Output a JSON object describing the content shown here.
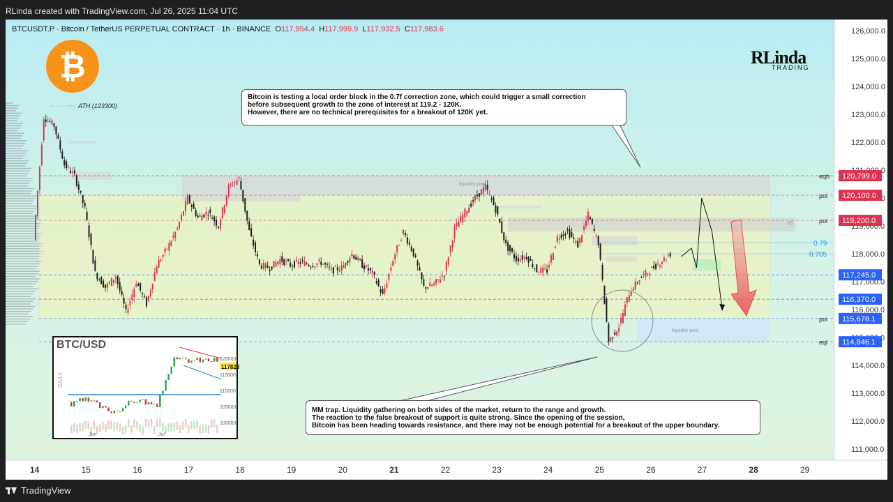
{
  "header": {
    "attribution": "RLinda created with TradingView.com, Jul 26, 2025 11:04 UTC"
  },
  "footer": {
    "brand": "TradingView"
  },
  "legend": {
    "symbol": "BTCUSDT.P · Bitcoin / TetherUS PERPETUAL CONTRACT · 1h · BINANCE",
    "o_label": "O",
    "o_value": "117,954.4",
    "h_label": "H",
    "h_value": "117,999.9",
    "l_label": "L",
    "l_value": "117,932.5",
    "c_label": "C",
    "c_value": "117,983.6"
  },
  "logos": {
    "btc": "₿",
    "brand_top": "RLinda",
    "brand_bottom": "TRADING"
  },
  "annotations": {
    "ath": "ATH (123300)",
    "liquidity_pool_top": "liquidity pool",
    "liquidity_pool_bottom": "liquidity pool",
    "ob": "oB",
    "callout_top": [
      "Bitcoin is testing a local order block in the 0.7f correction zone, which could trigger a small correction",
      "before subsequent growth to the zone of interest at 119.2 - 120K.",
      "However, there are no technical prerequisites for a breakout of 120K yet."
    ],
    "callout_bottom": [
      "MM trap. Liquidity gathering on both sides of the market, return to the range and growth.",
      "The reaction to the false breakout of support is quite strong. Since the opening of the session,",
      "Bitcoin has been heading towards resistance, and there may not be enough potential for a breakout of the upper boundary."
    ]
  },
  "levels": [
    {
      "label": "eqh",
      "price": "120,799.0",
      "color": "#e0324f"
    },
    {
      "label": "poi",
      "price": "120,100.0",
      "color": "#e0324f"
    },
    {
      "label": "poi",
      "price": "119,200.0",
      "color": "#e0324f"
    },
    {
      "label": "",
      "price": "117,245.0",
      "color": "#2962ff"
    },
    {
      "label": "",
      "price": "116,370.0",
      "color": "#2962ff"
    },
    {
      "label": "poi",
      "price": "115,678.1",
      "color": "#2962ff"
    },
    {
      "label": "eql",
      "price": "114,846.1",
      "color": "#2962ff"
    }
  ],
  "fib": [
    {
      "label": "0.79",
      "value": 118400
    },
    {
      "label": "0.705",
      "value": 118000
    }
  ],
  "inset": {
    "title": "BTC/USD",
    "side_label": "DAILY",
    "y_ticks": [
      "120000",
      "115000",
      "110000",
      "105000",
      "100000"
    ],
    "x_ticks": [
      "Jun",
      "Jul"
    ],
    "price_tag": "117828"
  },
  "chart_data": {
    "type": "candlestick",
    "title": "BTCUSDT.P · Bitcoin / TetherUS PERPETUAL CONTRACT · 1h · BINANCE",
    "y_axis": {
      "ticks": [
        "126,000.0",
        "125,000.0",
        "124,000.0",
        "123,000.0",
        "122,000.0",
        "121,000.0",
        "120,000.0",
        "119,000.0",
        "118,000.0",
        "117,000.0",
        "116,000.0",
        "115,000.0",
        "114,000.0",
        "113,000.0",
        "112,000.0",
        "111,000.0"
      ],
      "range": [
        110600,
        126400
      ]
    },
    "x_axis": {
      "ticks": [
        "14",
        "15",
        "16",
        "17",
        "18",
        "19",
        "20",
        "21",
        "22",
        "23",
        "24",
        "25",
        "26",
        "27",
        "28",
        "29"
      ],
      "bold_ticks": [
        "14",
        "21",
        "28"
      ]
    },
    "series": [
      {
        "x": [
          14.0,
          14.2,
          14.4,
          14.6,
          14.8,
          15.0,
          15.2,
          15.4,
          15.6,
          15.8,
          16.0,
          16.2,
          16.4,
          16.6,
          16.8,
          17.0,
          17.2,
          17.4,
          17.6,
          17.8,
          18.0,
          18.2,
          18.4,
          18.6,
          18.8,
          19.0,
          19.2,
          19.4,
          19.6,
          19.8,
          20.0,
          20.2,
          20.4,
          20.6,
          20.8,
          21.0,
          21.2,
          21.4,
          21.6,
          21.8,
          22.0,
          22.2,
          22.4,
          22.6,
          22.8,
          23.0,
          23.2,
          23.4,
          23.6,
          23.8,
          24.0,
          24.2,
          24.4,
          24.6,
          24.8,
          25.0,
          25.2,
          25.4,
          25.6,
          25.8,
          26.0,
          26.2,
          26.4
        ],
        "close": [
          118500,
          122900,
          122600,
          121200,
          120800,
          119600,
          117300,
          116800,
          117200,
          115900,
          117000,
          116200,
          117600,
          118200,
          118900,
          120000,
          119300,
          119500,
          119000,
          120400,
          120700,
          118800,
          117600,
          117500,
          117800,
          117600,
          117700,
          117600,
          117700,
          117400,
          117500,
          118000,
          117600,
          117300,
          116500,
          117800,
          118800,
          118000,
          116800,
          116900,
          117300,
          118900,
          119500,
          120000,
          120400,
          119600,
          118300,
          117800,
          117900,
          117400,
          117400,
          118600,
          118800,
          118300,
          119400,
          118400,
          114850,
          115400,
          116600,
          117100,
          117400,
          117700,
          118000
        ]
      }
    ],
    "projection": [
      {
        "x": 26.6,
        "y": 117900
      },
      {
        "x": 26.8,
        "y": 118200
      },
      {
        "x": 26.9,
        "y": 117500
      },
      {
        "x": 27.0,
        "y": 120000
      },
      {
        "x": 27.2,
        "y": 118800
      },
      {
        "x": 27.4,
        "y": 116000
      }
    ],
    "levels": [
      120799.0,
      120100.0,
      119200.0,
      117245.0,
      116370.0,
      115678.1,
      114846.1
    ]
  }
}
